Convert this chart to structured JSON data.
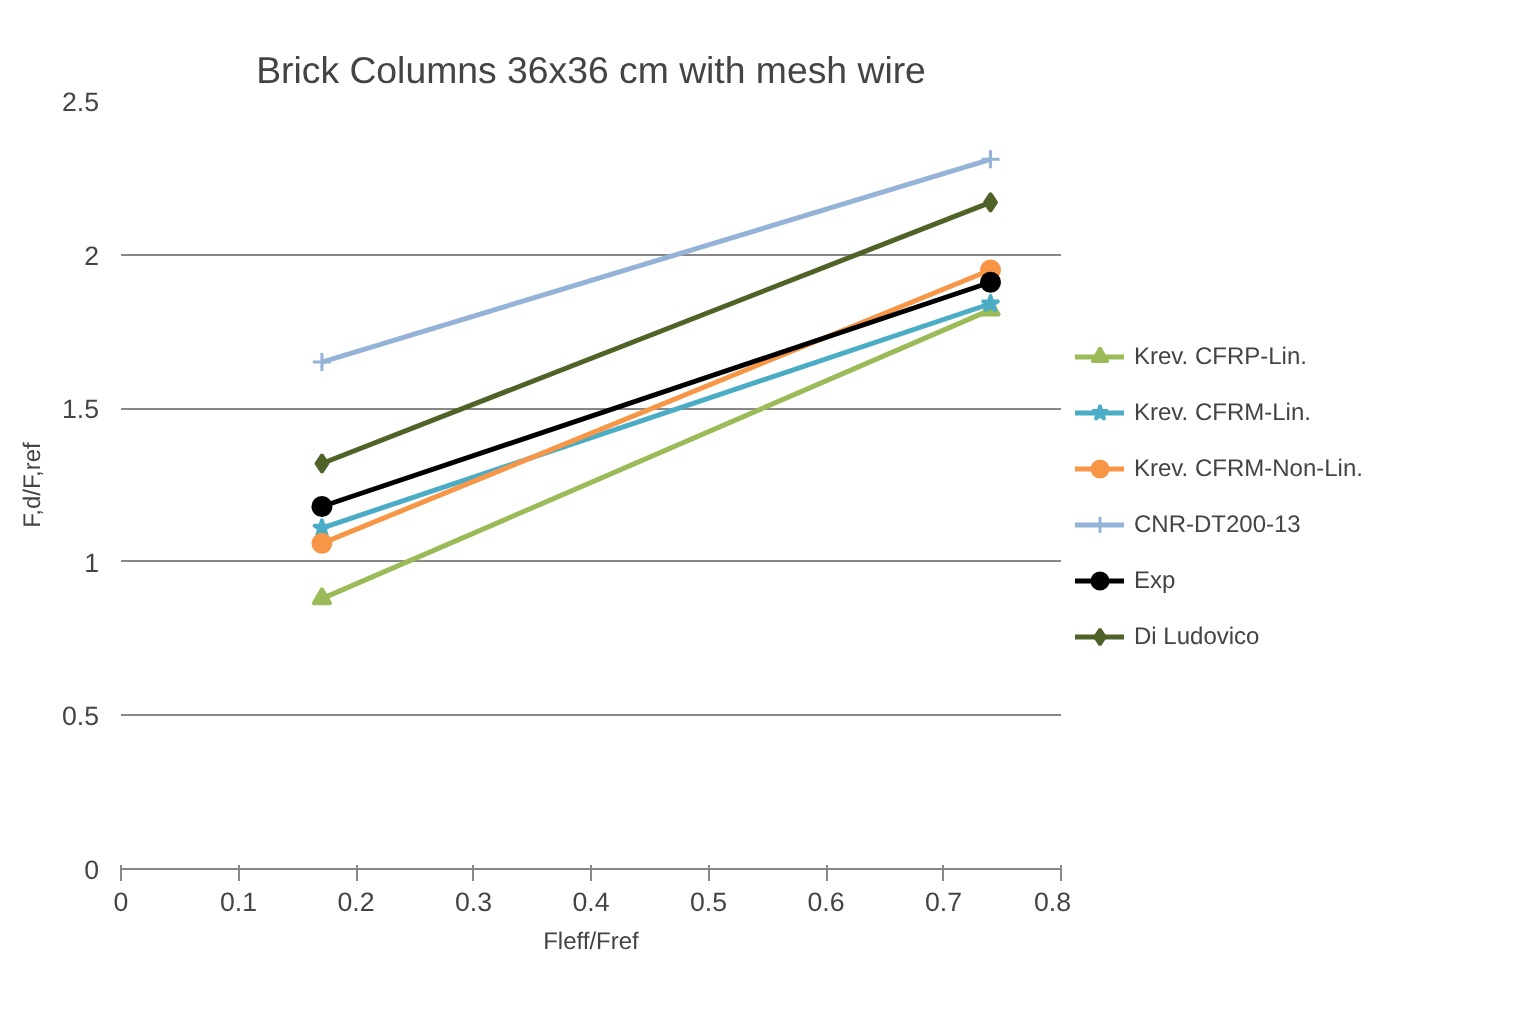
{
  "chart_data": {
    "type": "line",
    "title": "Brick Columns 36x36 cm with mesh wire",
    "xlabel": "Fleff/Fref",
    "ylabel": "F,d/F,ref",
    "xlim": [
      0,
      0.8
    ],
    "xticks": [
      0,
      0.1,
      0.2,
      0.3,
      0.4,
      0.5,
      0.6,
      0.7,
      0.8
    ],
    "ylim": [
      0,
      2.5
    ],
    "yticks": [
      0,
      0.5,
      1,
      1.5,
      2,
      2.5
    ],
    "grid": "y",
    "legend": "right",
    "line_style": "solid",
    "x": [
      0.171,
      0.74
    ],
    "series": [
      {
        "name": "Krev. CFRP-Lin.",
        "color": "#9bbb59",
        "marker": "triangle",
        "values": [
          0.88,
          1.82
        ]
      },
      {
        "name": "Krev. CFRM-Lin.",
        "color": "#4bacc6",
        "marker": "star",
        "values": [
          1.11,
          1.84
        ]
      },
      {
        "name": "Krev. CFRM-Non-Lin.",
        "color": "#f79646",
        "marker": "circle",
        "values": [
          1.06,
          1.95
        ]
      },
      {
        "name": "CNR-DT200-13",
        "color": "#95b3d7",
        "marker": "cross",
        "values": [
          1.65,
          2.31
        ]
      },
      {
        "name": "Exp",
        "color": "#000000",
        "marker": "circle",
        "values": [
          1.18,
          1.91
        ]
      },
      {
        "name": "Di Ludovico",
        "color": "#4f6228",
        "marker": "diamond",
        "values": [
          1.32,
          2.17
        ]
      }
    ]
  }
}
